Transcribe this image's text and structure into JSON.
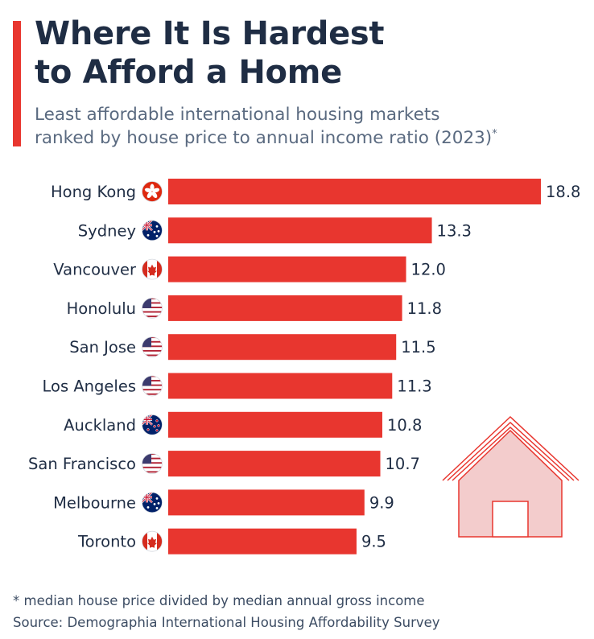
{
  "title": "Where It Is Hardest to Afford a Home",
  "title_lines": [
    "Where It Is Hardest",
    "to Afford a Home"
  ],
  "subtitle_lines": [
    "Least affordable international housing markets",
    "ranked by house price to annual income ratio (2023)"
  ],
  "subtitle_mark": "*",
  "footnote": "* median house price divided by median annual gross income",
  "source": "Source: Demographia International Housing Affordability Survey",
  "colors": {
    "bar": "#e8362f",
    "title": "#1f2d44",
    "subtitle": "#5a6a80",
    "house_fill": "#f3cccc",
    "house_stroke": "#e8362f"
  },
  "chart_data": {
    "type": "bar",
    "orientation": "horizontal",
    "categories": [
      "Hong Kong",
      "Sydney",
      "Vancouver",
      "Honolulu",
      "San Jose",
      "Los Angeles",
      "Auckland",
      "San Francisco",
      "Melbourne",
      "Toronto"
    ],
    "values": [
      18.8,
      13.3,
      12.0,
      11.8,
      11.5,
      11.3,
      10.8,
      10.7,
      9.9,
      9.5
    ],
    "value_labels": [
      "18.8",
      "13.3",
      "12.0",
      "11.8",
      "11.5",
      "11.3",
      "10.8",
      "10.7",
      "9.9",
      "9.5"
    ],
    "flags": [
      "hong-kong",
      "australia",
      "canada",
      "usa",
      "usa",
      "usa",
      "new-zealand",
      "usa",
      "australia",
      "canada"
    ],
    "xlim": [
      0,
      18.8
    ],
    "grid": false,
    "legend": "none"
  }
}
